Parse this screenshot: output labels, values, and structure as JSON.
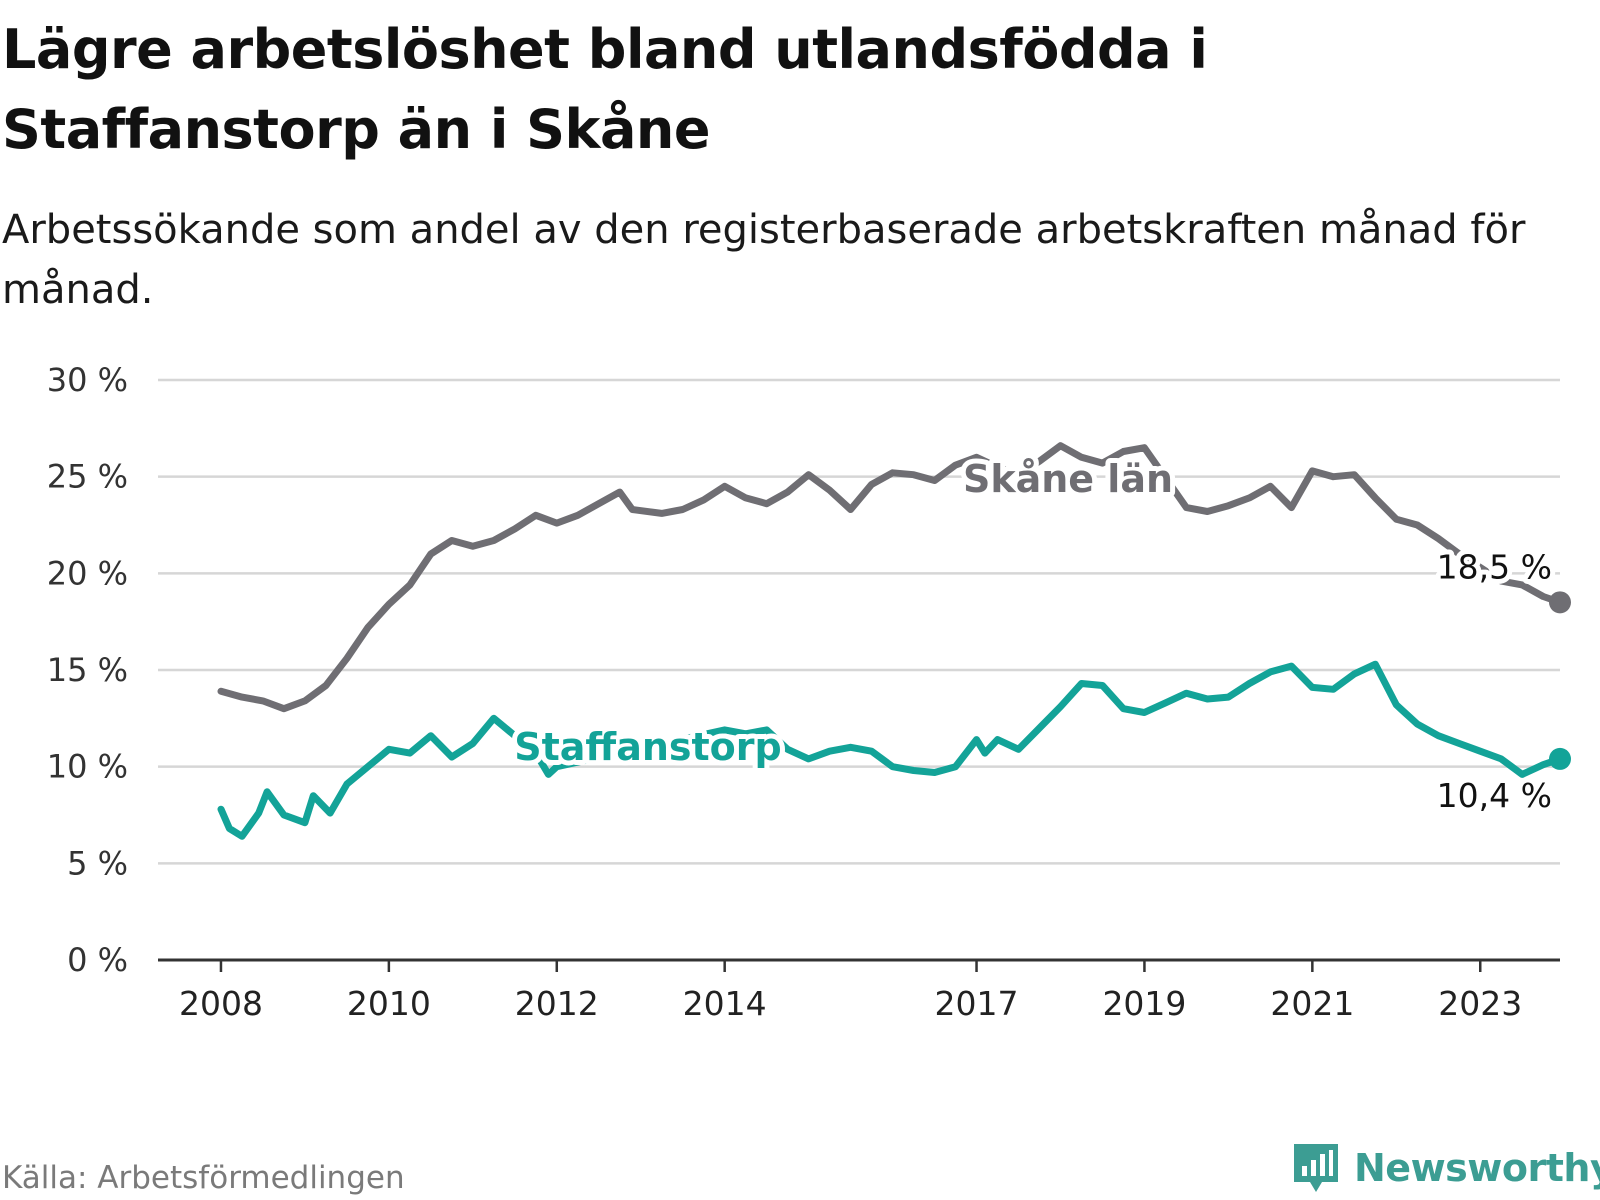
{
  "header": {
    "title": "Lägre arbetslöshet bland utlandsfödda i Staffanstorp än i Skåne",
    "subtitle": "Arbetssökande som andel av den registerbaserade arbetskraften månad för månad."
  },
  "footer": {
    "source": "Källa: Arbetsförmedlingen",
    "brand": "Newsworthy"
  },
  "colors": {
    "skane": "#6f6e73",
    "staffanstorp": "#13a398",
    "grid": "#d6d6d6",
    "axis": "#333333",
    "brand": "#3c9d93"
  },
  "chart_data": {
    "type": "line",
    "title": "Lägre arbetslöshet bland utlandsfödda i Staffanstorp än i Skåne",
    "xlabel": "",
    "ylabel": "",
    "ylim": [
      0,
      30
    ],
    "xlim": [
      2007.25,
      2023.95
    ],
    "grid": true,
    "y_ticks": [
      0,
      5,
      10,
      15,
      20,
      25,
      30
    ],
    "y_tick_labels": [
      "0 %",
      "5 %",
      "10 %",
      "15 %",
      "20 %",
      "25 %",
      "30 %"
    ],
    "x_ticks": [
      2008,
      2010,
      2012,
      2014,
      2017,
      2019,
      2021,
      2023
    ],
    "x_tick_labels": [
      "2008",
      "2010",
      "2012",
      "2014",
      "2017",
      "2019",
      "2021",
      "2023"
    ],
    "series": [
      {
        "name": "Skåne län",
        "label": "Skåne län",
        "end_label": "18,5 %",
        "points": [
          [
            2008.0,
            13.9
          ],
          [
            2008.25,
            13.6
          ],
          [
            2008.5,
            13.4
          ],
          [
            2008.75,
            13.0
          ],
          [
            2009.0,
            13.4
          ],
          [
            2009.25,
            14.2
          ],
          [
            2009.5,
            15.6
          ],
          [
            2009.75,
            17.2
          ],
          [
            2010.0,
            18.4
          ],
          [
            2010.25,
            19.4
          ],
          [
            2010.5,
            21.0
          ],
          [
            2010.75,
            21.7
          ],
          [
            2011.0,
            21.4
          ],
          [
            2011.25,
            21.7
          ],
          [
            2011.5,
            22.3
          ],
          [
            2011.75,
            23.0
          ],
          [
            2012.0,
            22.6
          ],
          [
            2012.25,
            23.0
          ],
          [
            2012.5,
            23.6
          ],
          [
            2012.75,
            24.2
          ],
          [
            2012.9,
            23.3
          ],
          [
            2013.25,
            23.1
          ],
          [
            2013.5,
            23.3
          ],
          [
            2013.75,
            23.8
          ],
          [
            2014.0,
            24.5
          ],
          [
            2014.25,
            23.9
          ],
          [
            2014.5,
            23.6
          ],
          [
            2014.75,
            24.2
          ],
          [
            2015.0,
            25.1
          ],
          [
            2015.25,
            24.3
          ],
          [
            2015.5,
            23.3
          ],
          [
            2015.75,
            24.6
          ],
          [
            2016.0,
            25.2
          ],
          [
            2016.25,
            25.1
          ],
          [
            2016.5,
            24.8
          ],
          [
            2016.75,
            25.6
          ],
          [
            2017.0,
            26.0
          ],
          [
            2017.25,
            25.5
          ],
          [
            2017.5,
            25.1
          ],
          [
            2017.75,
            25.8
          ],
          [
            2018.0,
            26.6
          ],
          [
            2018.25,
            26.0
          ],
          [
            2018.5,
            25.7
          ],
          [
            2018.75,
            26.3
          ],
          [
            2019.0,
            26.5
          ],
          [
            2019.5,
            23.4
          ],
          [
            2019.75,
            23.2
          ],
          [
            2020.0,
            23.5
          ],
          [
            2020.25,
            23.9
          ],
          [
            2020.5,
            24.5
          ],
          [
            2020.75,
            23.4
          ],
          [
            2021.0,
            25.3
          ],
          [
            2021.25,
            25.0
          ],
          [
            2021.5,
            25.1
          ],
          [
            2021.75,
            23.9
          ],
          [
            2022.0,
            22.8
          ],
          [
            2022.25,
            22.5
          ],
          [
            2022.5,
            21.8
          ],
          [
            2022.75,
            21.0
          ],
          [
            2023.0,
            20.3
          ],
          [
            2023.25,
            19.6
          ],
          [
            2023.5,
            19.4
          ],
          [
            2023.75,
            18.8
          ],
          [
            2023.95,
            18.5
          ]
        ]
      },
      {
        "name": "Staffanstorp",
        "label": "Staffanstorp",
        "end_label": "10,4 %",
        "points": [
          [
            2008.0,
            7.8
          ],
          [
            2008.1,
            6.8
          ],
          [
            2008.25,
            6.4
          ],
          [
            2008.45,
            7.6
          ],
          [
            2008.55,
            8.7
          ],
          [
            2008.75,
            7.5
          ],
          [
            2009.0,
            7.1
          ],
          [
            2009.1,
            8.5
          ],
          [
            2009.3,
            7.6
          ],
          [
            2009.5,
            9.1
          ],
          [
            2009.75,
            10.0
          ],
          [
            2010.0,
            10.9
          ],
          [
            2010.25,
            10.7
          ],
          [
            2010.5,
            11.6
          ],
          [
            2010.75,
            10.5
          ],
          [
            2011.0,
            11.2
          ],
          [
            2011.25,
            12.5
          ],
          [
            2011.5,
            11.6
          ],
          [
            2011.75,
            10.7
          ],
          [
            2011.9,
            9.6
          ],
          [
            2012.0,
            10.0
          ],
          [
            2014.0,
            11.9
          ],
          [
            2014.25,
            11.7
          ],
          [
            2014.5,
            11.9
          ],
          [
            2014.75,
            10.9
          ],
          [
            2015.0,
            10.4
          ],
          [
            2015.25,
            10.8
          ],
          [
            2015.5,
            11.0
          ],
          [
            2015.75,
            10.8
          ],
          [
            2016.0,
            10.0
          ],
          [
            2016.25,
            9.8
          ],
          [
            2016.5,
            9.7
          ],
          [
            2016.75,
            10.0
          ],
          [
            2017.0,
            11.4
          ],
          [
            2017.1,
            10.7
          ],
          [
            2017.25,
            11.4
          ],
          [
            2017.5,
            10.9
          ],
          [
            2017.75,
            12.0
          ],
          [
            2018.0,
            13.1
          ],
          [
            2018.25,
            14.3
          ],
          [
            2018.5,
            14.2
          ],
          [
            2018.75,
            13.0
          ],
          [
            2019.0,
            12.8
          ],
          [
            2019.25,
            13.3
          ],
          [
            2019.5,
            13.8
          ],
          [
            2019.75,
            13.5
          ],
          [
            2020.0,
            13.6
          ],
          [
            2020.25,
            14.3
          ],
          [
            2020.5,
            14.9
          ],
          [
            2020.75,
            15.2
          ],
          [
            2021.0,
            14.1
          ],
          [
            2021.25,
            14.0
          ],
          [
            2021.5,
            14.8
          ],
          [
            2021.75,
            15.3
          ],
          [
            2022.0,
            13.2
          ],
          [
            2022.25,
            12.2
          ],
          [
            2022.5,
            11.6
          ],
          [
            2022.75,
            11.2
          ],
          [
            2023.0,
            10.8
          ],
          [
            2023.25,
            10.4
          ],
          [
            2023.5,
            9.6
          ],
          [
            2023.75,
            10.1
          ],
          [
            2023.95,
            10.4
          ]
        ]
      }
    ]
  }
}
